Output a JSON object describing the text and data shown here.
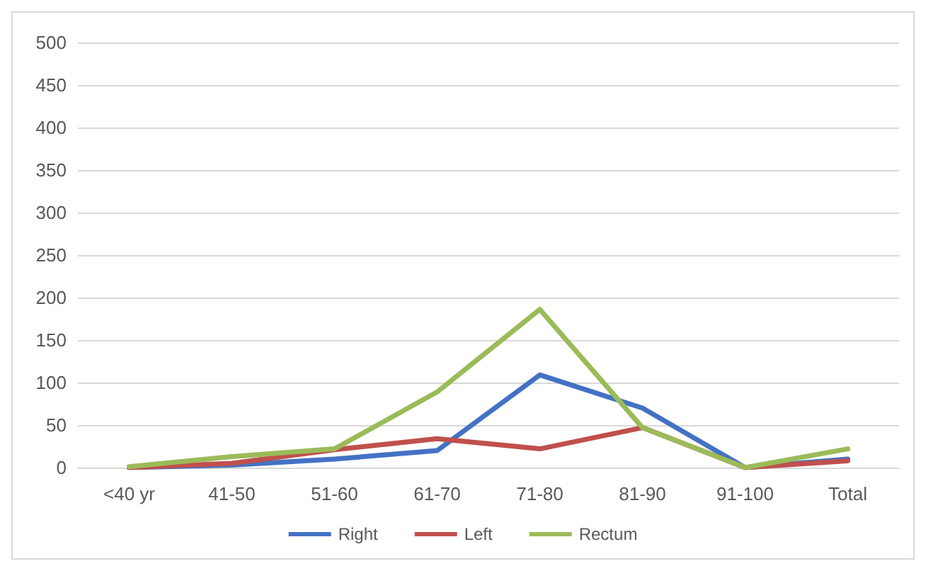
{
  "chart_data": {
    "type": "line",
    "categories": [
      "<40 yr",
      "41-50",
      "51-60",
      "61-70",
      "71-80",
      "81-90",
      "91-100",
      "Total"
    ],
    "series": [
      {
        "name": "Right",
        "color": "#4472c4",
        "values": [
          0,
          3,
          10,
          20,
          109,
          70,
          0,
          10
        ]
      },
      {
        "name": "Left",
        "color": "#c0504d",
        "values": [
          0,
          5,
          21,
          34,
          22,
          47,
          0,
          8
        ]
      },
      {
        "name": "Rectum",
        "color": "#9bbb59",
        "values": [
          1,
          13,
          22,
          89,
          186,
          47,
          0,
          22
        ]
      }
    ],
    "ylim": [
      0,
      500
    ],
    "yticks": [
      0,
      50,
      100,
      150,
      200,
      250,
      300,
      350,
      400,
      450,
      500
    ],
    "grid": "y",
    "legend": "bottom",
    "marker": "none",
    "line_style": "solid"
  }
}
